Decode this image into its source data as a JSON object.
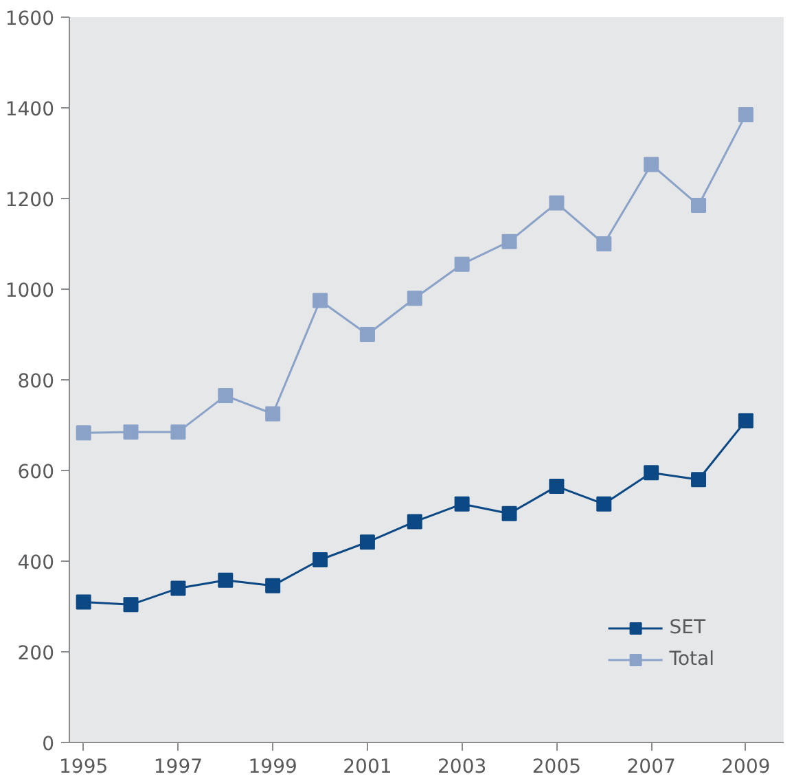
{
  "chart_data": {
    "type": "line",
    "x": [
      1995,
      1996,
      1997,
      1998,
      1999,
      2000,
      2001,
      2002,
      2003,
      2004,
      2005,
      2006,
      2007,
      2008,
      2009
    ],
    "series": [
      {
        "name": "SET",
        "color": "#0b4884",
        "values": [
          310,
          304,
          340,
          358,
          346,
          403,
          442,
          487,
          526,
          505,
          565,
          526,
          595,
          580,
          710
        ]
      },
      {
        "name": "Total",
        "color": "#8aa2c8",
        "values": [
          683,
          685,
          685,
          765,
          725,
          975,
          900,
          980,
          1055,
          1105,
          1190,
          1100,
          1275,
          1185,
          1385
        ]
      }
    ],
    "xlim": [
      1994.7,
      2009.8
    ],
    "xticks": [
      1995,
      1997,
      1999,
      2001,
      2003,
      2005,
      2007,
      2009
    ],
    "ylim": [
      0,
      1600
    ],
    "yticks": [
      0,
      200,
      400,
      600,
      800,
      1000,
      1200,
      1400,
      1600
    ],
    "legend": "bottom right",
    "marker": "square",
    "line_style": "solid"
  }
}
